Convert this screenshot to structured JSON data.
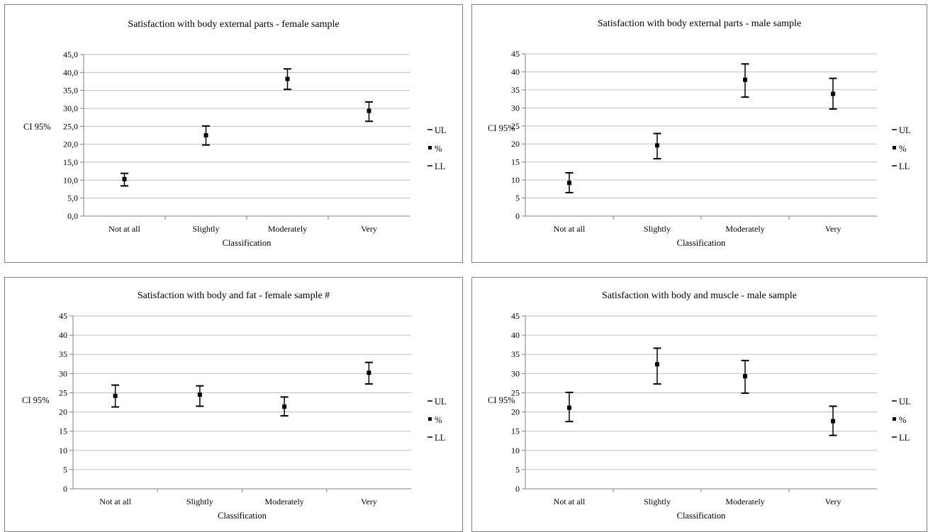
{
  "chart_data": [
    {
      "type": "errorbar",
      "title": "Satisfaction with body external parts - female sample",
      "xlabel": "Classification",
      "ylabel": "CI 95%",
      "categories": [
        "Not at all",
        "Slightly",
        "Moderately",
        "Very"
      ],
      "ylim": [
        0,
        45
      ],
      "ytick_step": 5,
      "ytick_labels": [
        "0,0",
        "5,0",
        "10,0",
        "15,0",
        "20,0",
        "25,0",
        "30,0",
        "35,0",
        "40,0",
        "45,0"
      ],
      "series": [
        {
          "name": "UL",
          "values": [
            11.9,
            25.1,
            41.0,
            31.8
          ]
        },
        {
          "name": "%",
          "values": [
            10.3,
            22.5,
            38.2,
            29.3
          ]
        },
        {
          "name": "LL",
          "values": [
            8.4,
            19.8,
            35.3,
            26.4
          ]
        }
      ],
      "grid": true,
      "legend": "right",
      "legend_labels": [
        "UL",
        "%",
        "LL"
      ]
    },
    {
      "type": "errorbar",
      "title": "Satisfaction with body external parts - male sample",
      "xlabel": "Classification",
      "ylabel": "CI 95%",
      "categories": [
        "Not at all",
        "Slightly",
        "Moderately",
        "Very"
      ],
      "ylim": [
        0,
        45
      ],
      "ytick_step": 5,
      "ytick_labels": [
        "0",
        "5",
        "10",
        "15",
        "20",
        "25",
        "30",
        "35",
        "40",
        "45"
      ],
      "series": [
        {
          "name": "UL",
          "values": [
            12.0,
            22.9,
            42.2,
            38.2
          ]
        },
        {
          "name": "%",
          "values": [
            9.2,
            19.6,
            37.8,
            33.9
          ]
        },
        {
          "name": "LL",
          "values": [
            6.5,
            15.9,
            33.0,
            29.7
          ]
        }
      ],
      "grid": true,
      "legend": "right",
      "legend_labels": [
        "UL",
        "%",
        "LL"
      ]
    },
    {
      "type": "errorbar",
      "title": "Satisfaction with body and fat - female sample #",
      "xlabel": "Classification",
      "ylabel": "CI 95%",
      "categories": [
        "Not at all",
        "Slightly",
        "Moderately",
        "Very"
      ],
      "ylim": [
        0,
        45
      ],
      "ytick_step": 5,
      "ytick_labels": [
        "0",
        "5",
        "10",
        "15",
        "20",
        "25",
        "30",
        "35",
        "40",
        "45"
      ],
      "series": [
        {
          "name": "UL",
          "values": [
            27.0,
            26.8,
            23.9,
            32.9
          ]
        },
        {
          "name": "%",
          "values": [
            24.2,
            24.5,
            21.4,
            30.2
          ]
        },
        {
          "name": "LL",
          "values": [
            21.3,
            21.5,
            19.0,
            27.3
          ]
        }
      ],
      "grid": true,
      "legend": "right",
      "legend_labels": [
        "UL",
        "%",
        "LL"
      ]
    },
    {
      "type": "errorbar",
      "title": "Satisfaction with body and muscle - male sample",
      "xlabel": "Classification",
      "ylabel": "CI 95%",
      "categories": [
        "Not at all",
        "Slightly",
        "Moderately",
        "Very"
      ],
      "ylim": [
        0,
        45
      ],
      "ytick_step": 5,
      "ytick_labels": [
        "0",
        "5",
        "10",
        "15",
        "20",
        "25",
        "30",
        "35",
        "40",
        "45"
      ],
      "series": [
        {
          "name": "UL",
          "values": [
            25.1,
            36.6,
            33.4,
            21.5
          ]
        },
        {
          "name": "%",
          "values": [
            21.1,
            32.4,
            29.3,
            17.6
          ]
        },
        {
          "name": "LL",
          "values": [
            17.5,
            27.3,
            24.9,
            13.9
          ]
        }
      ],
      "grid": true,
      "legend": "right",
      "legend_labels": [
        "UL",
        "%",
        "LL"
      ]
    }
  ],
  "colors": {
    "axis": "#808080",
    "grid": "#bfbfbf",
    "marker": "#000000",
    "border": "#7f7f7f"
  }
}
